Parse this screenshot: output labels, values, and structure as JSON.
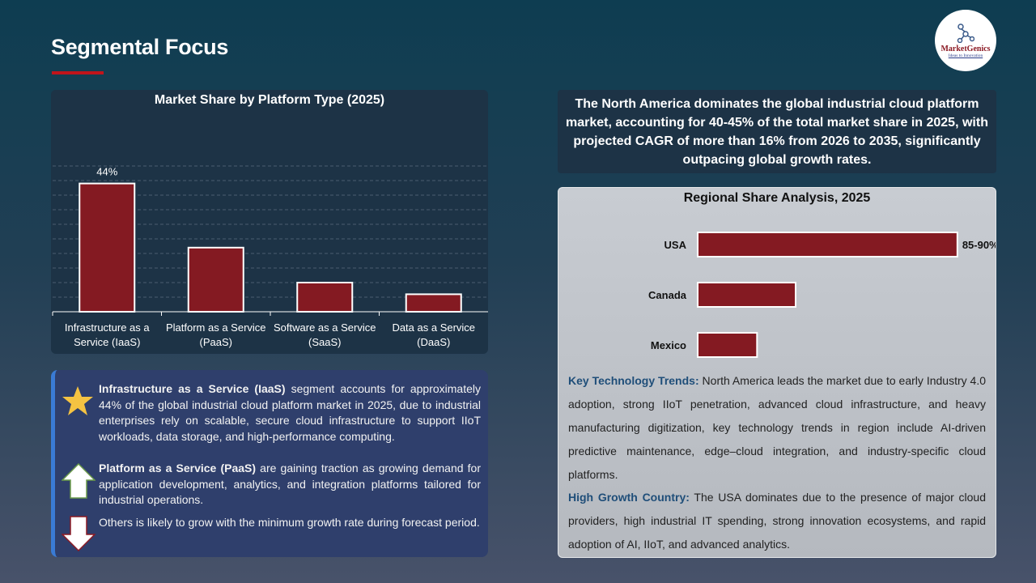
{
  "header": {
    "title": "Segmental Focus",
    "logo_name": "MarketGenics",
    "logo_tagline": "Ideas to Innovation"
  },
  "chart_data": [
    {
      "type": "bar",
      "title": "Market Share by Platform Type (2025)",
      "categories": [
        "Infrastructure as a Service (IaaS)",
        "Platform as a Service (PaaS)",
        "Software as a Service (SaaS)",
        "Data as a Service (DaaS)"
      ],
      "category_lines": [
        [
          "Infrastructure as a",
          "Service (IaaS)"
        ],
        [
          "Platform as a Service",
          "(PaaS)"
        ],
        [
          "Software as a Service",
          "(SaaS)"
        ],
        [
          "Data as a Service",
          "(DaaS)"
        ]
      ],
      "values": [
        44,
        22,
        10,
        6
      ],
      "data_labels": [
        "44%",
        "",
        "",
        ""
      ],
      "ylim": [
        0,
        50
      ],
      "grid": true,
      "bar_color": "#841a22"
    },
    {
      "type": "bar",
      "orientation": "horizontal",
      "title": "Regional Share Analysis, 2025",
      "categories": [
        "USA",
        "Canada",
        "Mexico"
      ],
      "values": [
        87.5,
        33,
        20
      ],
      "data_labels": [
        "85-90%",
        "",
        ""
      ],
      "xlim": [
        0,
        90
      ],
      "grid": false,
      "bar_color": "#841a22"
    }
  ],
  "segments": [
    {
      "icon": "star-icon",
      "bold": "Infrastructure as a Service (IaaS)",
      "text": " segment accounts for approximately 44% of the global industrial cloud platform market in 2025, due to industrial enterprises rely on scalable, secure cloud infrastructure to support IIoT workloads, data storage, and high-performance computing."
    },
    {
      "icon": "arrow-up-icon",
      "bold": "Platform as a Service (PaaS)",
      "text": " are gaining traction as growing demand for application development, analytics, and integration platforms tailored for industrial operations."
    },
    {
      "icon": "arrow-down-icon",
      "bold": "",
      "text": "Others is likely to grow with the minimum growth rate during forecast period."
    }
  ],
  "summary": "The North America dominates the global industrial cloud platform market, accounting for 40-45% of the total market share in 2025, with projected CAGR of more than 16% from 2026 to 2035, significantly outpacing global growth rates.",
  "trends": [
    {
      "label": "Key Technology Trends:",
      "text": " North America leads the market due to early Industry 4.0 adoption, strong IIoT penetration, advanced cloud infrastructure, and heavy manufacturing digitization, key technology trends in region include AI-driven predictive maintenance, edge–cloud integration, and industry-specific cloud platforms."
    },
    {
      "label": "High Growth Country:",
      "text": " The USA dominates due to the presence of major cloud providers, high industrial IT spending, strong innovation ecosystems, and rapid adoption of AI, IIoT, and advanced analytics."
    }
  ]
}
